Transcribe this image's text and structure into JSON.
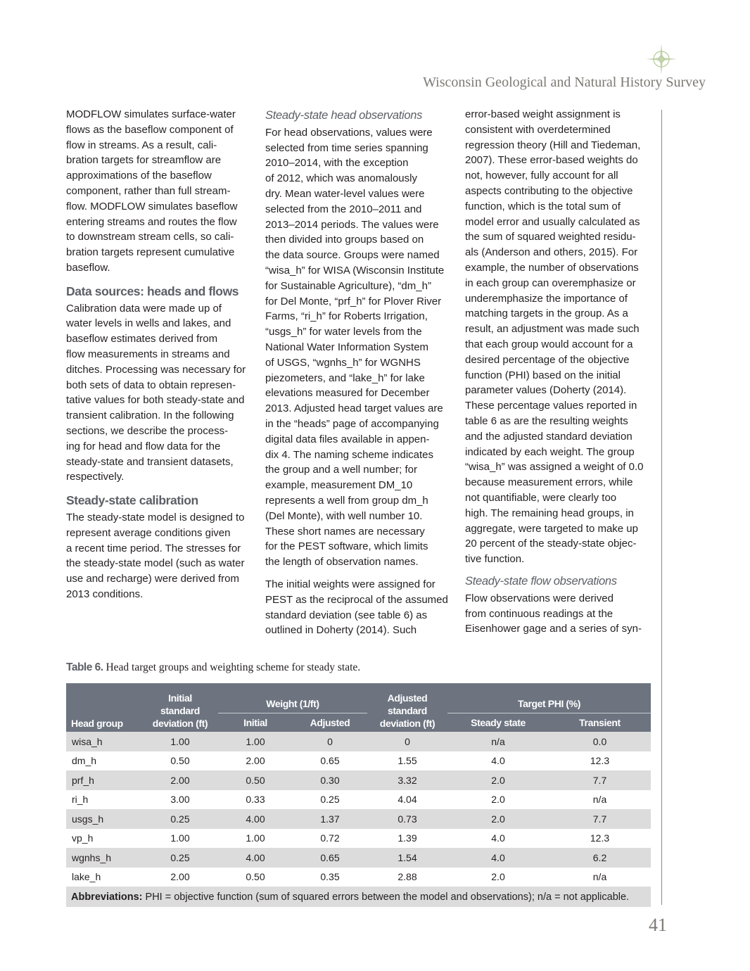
{
  "header": {
    "title": "Wisconsin Geological and Natural History Survey"
  },
  "col1": {
    "p1": "MODFLOW simulates surface-water\nflows as the baseflow component of\nflow in streams. As a result, cali-\nbration targets for streamflow are\napproximations of the baseflow\ncomponent, rather than full stream-\nflow. MODFLOW simulates baseflow\nentering streams and routes the flow\nto downstream stream cells, so cali-\nbration targets represent cumulative\nbaseflow.",
    "h1": "Data sources: heads and flows",
    "p2": "Calibration data were made up of\nwater levels in wells and lakes, and\nbaseflow estimates derived from\nflow measurements in streams and\nditches. Processing was necessary for\nboth sets of data to obtain represen-\ntative values for both steady-state and\ntransient calibration. In the following\nsections, we describe the process-\ning for head and flow data for the\nsteady-state and transient datasets,\nrespectively.",
    "h2": "Steady-state calibration",
    "p3": "The steady-state model is designed to\nrepresent average conditions given\na recent time period. The stresses for\nthe steady-state model (such as water\nuse and recharge) were derived from\n2013 conditions."
  },
  "col2": {
    "h1": "Steady-state head observations",
    "p1": "For head observations, values were\nselected from time series spanning\n2010–2014, with the exception\nof 2012, which was anomalously\ndry. Mean water-level values were\nselected from the 2010–2011 and\n2013–2014 periods. The values were\nthen divided into groups based on\nthe data source. Groups were named\n“wisa_h” for WISA (Wisconsin Institute\nfor Sustainable Agriculture), “dm_h”\nfor Del Monte, “prf_h” for Plover River\nFarms, “ri_h” for Roberts Irrigation,\n“usgs_h” for water levels from the\nNational Water Information System\nof USGS, “wgnhs_h” for WGNHS\npiezometers, and “lake_h” for lake\nelevations measured for December\n2013. Adjusted head target values are\nin the “heads” page of accompanying\ndigital data files available in appen-\ndix 4. The naming scheme indicates\nthe group and a well number; for\nexample, measurement DM_10\nrepresents a well from group dm_h\n(Del Monte), with well number 10.\nThese short names are necessary\nfor the PEST software, which limits\nthe length of observation names.",
    "p2": "The initial weights were assigned for\nPEST as the reciprocal of the assumed\nstandard deviation (see table 6) as\noutlined in Doherty (2014). Such"
  },
  "col3": {
    "p1": "error-based weight assignment is\nconsistent with overdetermined\nregression theory (Hill and Tiedeman,\n2007). These error-based weights do\nnot, however, fully account for all\naspects contributing to the objective\nfunction, which is the total sum of\nmodel error and usually calculated as\nthe sum of squared weighted residu-\nals (Anderson and others, 2015). For\nexample, the number of observations\nin each group can overemphasize or\nunderemphasize the importance of\nmatching targets in the group. As a\nresult, an adjustment was made such\nthat each group would account for a\ndesired percentage of the objective\nfunction (PHI) based on the initial\nparameter values (Doherty (2014).\nThese percentage values reported in\ntable 6 as are the resulting weights\nand the adjusted standard deviation\nindicated by each weight. The group\n“wisa_h” was assigned a weight of 0.0\nbecause measurement errors, while\nnot quantifiable, were clearly too\nhigh. The remaining head groups, in\naggregate, were targeted to make up\n20 percent of the steady-state objec-\ntive function.",
    "h1": "Steady-state flow observations",
    "p2": "Flow observations were derived\nfrom continuous readings at the\nEisenhower gage and a series of syn-"
  },
  "table": {
    "caption_label": "Table 6.",
    "caption_text": " Head target groups and weighting scheme for steady state.",
    "headers": {
      "head_group": "Head group",
      "initial_sd": "Initial\nstandard\ndeviation (ft)",
      "weight": "Weight (1/ft)",
      "weight_initial": "Initial",
      "weight_adjusted": "Adjusted",
      "adjusted_sd": "Adjusted\nstandard\ndeviation (ft)",
      "target_phi": "Target PHI (%)",
      "steady": "Steady state",
      "transient": "Transient"
    },
    "rows": [
      [
        "wisa_h",
        "1.00",
        "1.00",
        "0",
        "0",
        "n/a",
        "0.0"
      ],
      [
        "dm_h",
        "0.50",
        "2.00",
        "0.65",
        "1.55",
        "4.0",
        "12.3"
      ],
      [
        "prf_h",
        "2.00",
        "0.50",
        "0.30",
        "3.32",
        "2.0",
        "7.7"
      ],
      [
        "ri_h",
        "3.00",
        "0.33",
        "0.25",
        "4.04",
        "2.0",
        "n/a"
      ],
      [
        "usgs_h",
        "0.25",
        "4.00",
        "1.37",
        "0.73",
        "2.0",
        "7.7"
      ],
      [
        "vp_h",
        "1.00",
        "1.00",
        "0.72",
        "1.39",
        "4.0",
        "12.3"
      ],
      [
        "wgnhs_h",
        "0.25",
        "4.00",
        "0.65",
        "1.54",
        "4.0",
        "6.2"
      ],
      [
        "lake_h",
        "2.00",
        "0.50",
        "0.35",
        "2.88",
        "2.0",
        "n/a"
      ]
    ],
    "footnote_label": "Abbreviations:",
    "footnote_text": " PHI = objective function (sum of squared errors between the model and observations); n/a = not applicable."
  },
  "page_number": "41",
  "colors": {
    "header_gray": "#7d7a74",
    "table_header": "#6d7480",
    "row_shade": "#dcdcdc",
    "logo_green": "#b5c99a"
  }
}
